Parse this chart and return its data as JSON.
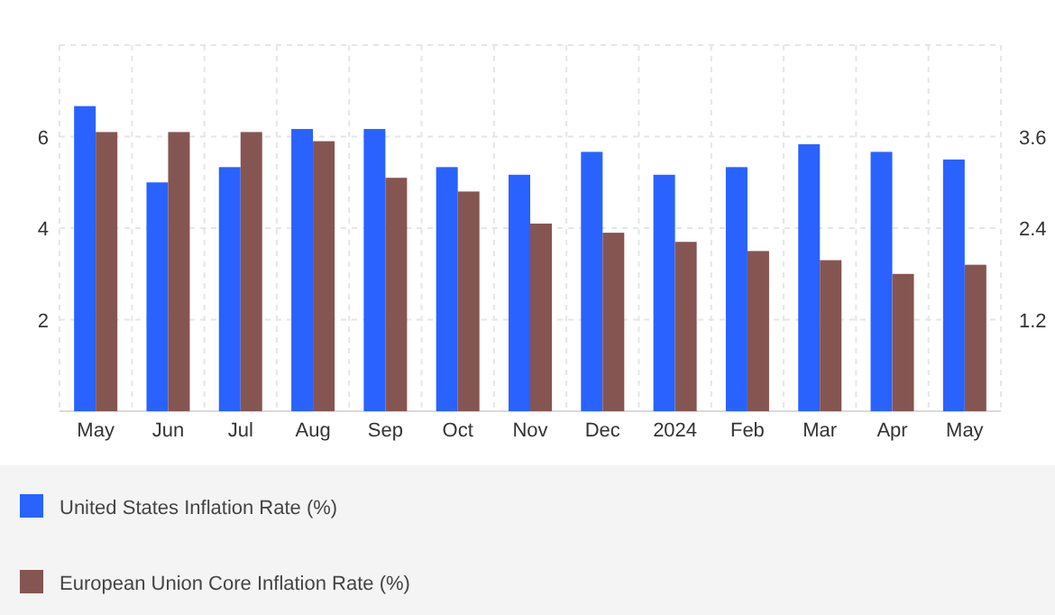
{
  "chart_data": {
    "type": "bar",
    "categories": [
      "May",
      "Jun",
      "Jul",
      "Aug",
      "Sep",
      "Oct",
      "Nov",
      "Dec",
      "2024",
      "Feb",
      "Mar",
      "Apr",
      "May"
    ],
    "series": [
      {
        "name": "United States Inflation Rate (%)",
        "color": "#2962ff",
        "axis": "y2",
        "values": [
          4.0,
          3.0,
          3.2,
          3.7,
          3.7,
          3.2,
          3.1,
          3.4,
          3.1,
          3.2,
          3.5,
          3.4,
          3.3
        ]
      },
      {
        "name": "European Union Core Inflation Rate (%)",
        "color": "#855552",
        "values": [
          6.1,
          6.1,
          6.1,
          5.9,
          5.1,
          4.8,
          4.1,
          3.9,
          3.7,
          3.5,
          3.3,
          3.0,
          3.2
        ]
      }
    ],
    "ylim": [
      0,
      8
    ],
    "yticks": [
      2,
      4,
      6
    ],
    "y2lim": [
      0,
      4.8
    ],
    "y2ticks": [
      1.2,
      2.4,
      3.6
    ],
    "grid": true,
    "legend": "bottom"
  }
}
